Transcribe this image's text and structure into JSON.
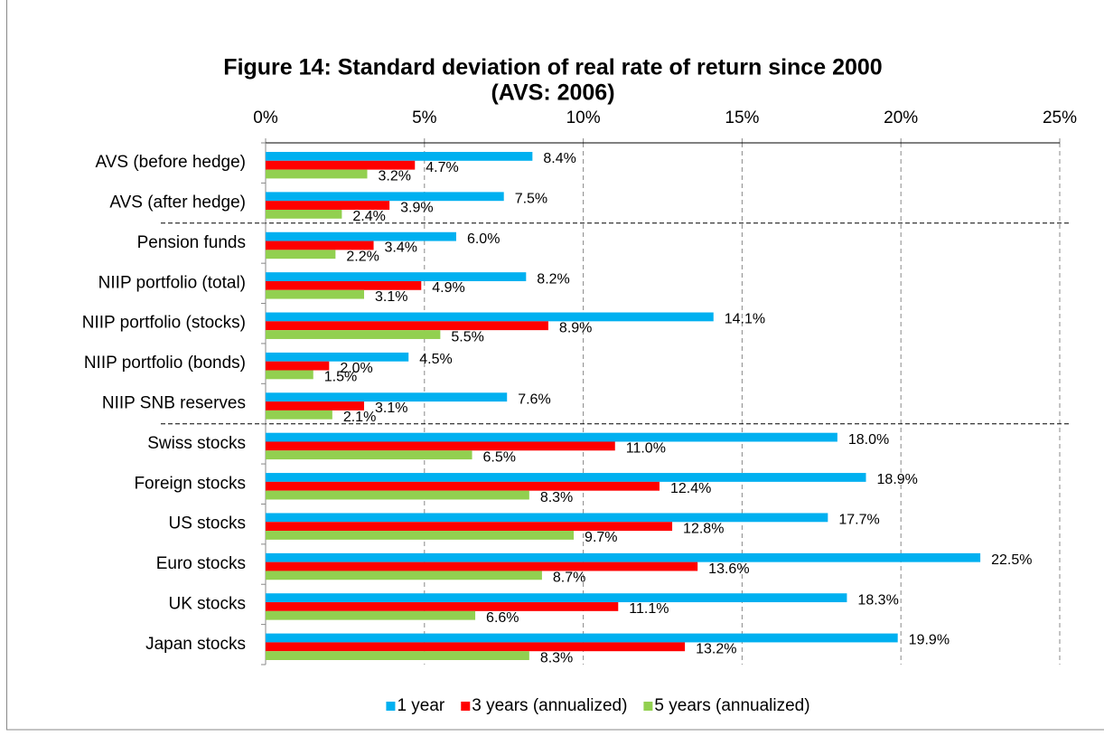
{
  "chart_data": {
    "type": "hbar",
    "title": "Figure 14: Standard deviation of real rate of return since 2000",
    "subtitle": "(AVS: 2006)",
    "categories": [
      "AVS (before hedge)",
      "AVS (after hedge)",
      "Pension funds",
      "NIIP portfolio (total)",
      "NIIP portfolio (stocks)",
      "NIIP portfolio (bonds)",
      "NIIP SNB reserves",
      "Swiss stocks",
      "Foreign stocks",
      "US stocks",
      "Euro stocks",
      "UK stocks",
      "Japan stocks"
    ],
    "series": [
      {
        "name": "1 year",
        "color": "#00b0f0",
        "values": [
          8.4,
          7.5,
          6.0,
          8.2,
          14.1,
          4.5,
          7.6,
          18.0,
          18.9,
          17.7,
          22.5,
          18.3,
          19.9
        ],
        "value_labels": [
          "8.4%",
          "7.5%",
          "6.0%",
          "8.2%",
          "14.1%",
          "4.5%",
          "7.6%",
          "18.0%",
          "18.9%",
          "17.7%",
          "22.5%",
          "18.3%",
          "19.9%"
        ]
      },
      {
        "name": "3 years (annualized)",
        "color": "#ff0000",
        "values": [
          4.7,
          3.9,
          3.4,
          4.9,
          8.9,
          2.0,
          3.1,
          11.0,
          12.4,
          12.8,
          13.6,
          11.1,
          13.2
        ],
        "value_labels": [
          "4.7%",
          "3.9%",
          "3.4%",
          "4.9%",
          "8.9%",
          "2.0%",
          "3.1%",
          "11.0%",
          "12.4%",
          "12.8%",
          "13.6%",
          "11.1%",
          "13.2%"
        ]
      },
      {
        "name": "5 years (annualized)",
        "color": "#92d050",
        "values": [
          3.2,
          2.4,
          2.2,
          3.1,
          5.5,
          1.5,
          2.1,
          6.5,
          8.3,
          9.7,
          8.7,
          6.6,
          8.3
        ],
        "value_labels": [
          "3.2%",
          "2.4%",
          "2.2%",
          "3.1%",
          "5.5%",
          "1.5%",
          "2.1%",
          "6.5%",
          "8.3%",
          "9.7%",
          "8.7%",
          "6.6%",
          "8.3%"
        ]
      }
    ],
    "xlim": [
      0,
      25
    ],
    "xticks": [
      {
        "value": 0,
        "label": "0%"
      },
      {
        "value": 5,
        "label": "5%"
      },
      {
        "value": 10,
        "label": "10%"
      },
      {
        "value": 15,
        "label": "15%"
      },
      {
        "value": 20,
        "label": "20%"
      },
      {
        "value": 25,
        "label": "25%"
      }
    ],
    "grid": true,
    "legend": "bottom"
  }
}
